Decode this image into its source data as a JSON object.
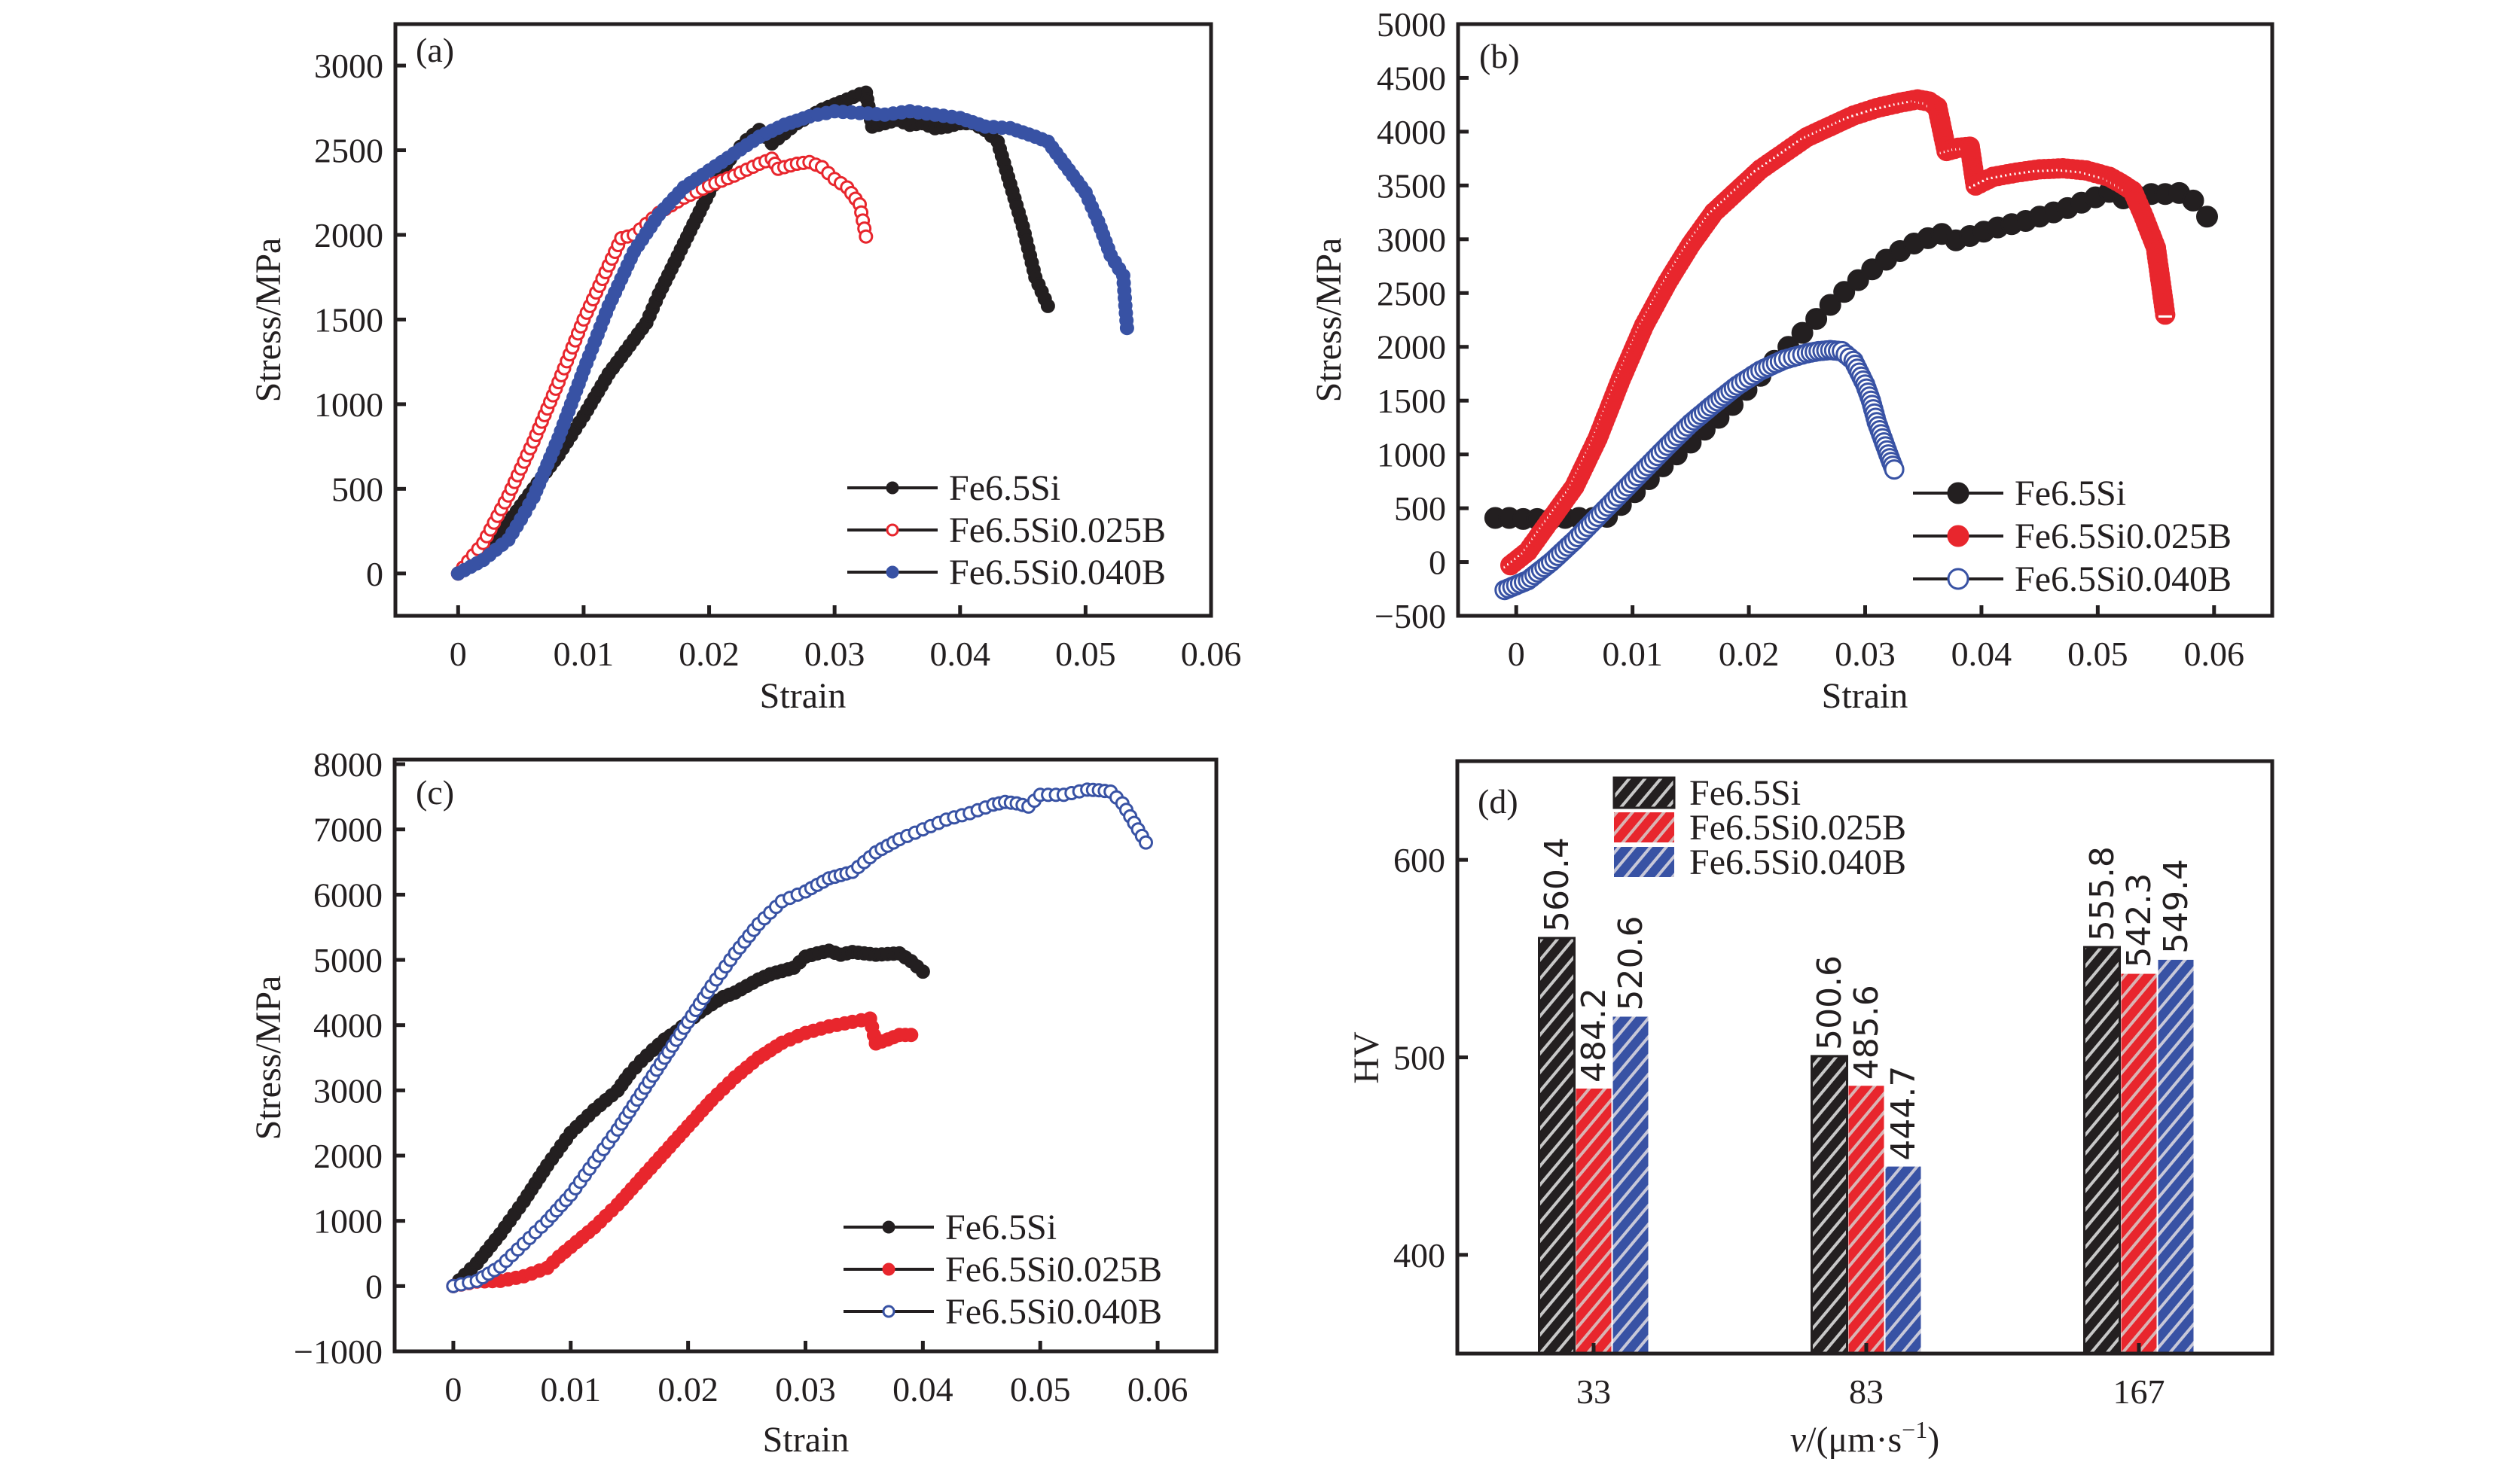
{
  "figure": {
    "series_colors": {
      "Fe6.5Si": "#231f20",
      "Fe6.5Si0.025B": "#e8262d",
      "Fe6.5Si0.040B": "#3852a4"
    }
  },
  "chart_data": [
    {
      "id": "a",
      "panel_label": "(a)",
      "type": "line",
      "xlabel": "Strain",
      "ylabel": "Stress/MPa",
      "xlim": [
        -0.005,
        0.06
      ],
      "ylim": [
        -250,
        3245
      ],
      "xticks": [
        0,
        0.01,
        0.02,
        0.03,
        0.04,
        0.05,
        0.06
      ],
      "xtick_labels": [
        "0",
        "0.01",
        "0.02",
        "0.03",
        "0.04",
        "0.05",
        "0.06"
      ],
      "yticks": [
        0,
        500,
        1000,
        1500,
        2000,
        2500,
        3000
      ],
      "ytick_labels": [
        "0",
        "500",
        "1000",
        "1500",
        "2000",
        "2500",
        "3000"
      ],
      "grid": false,
      "legend_position": "bottom-right",
      "series": [
        {
          "name": "Fe6.5Si",
          "marker": "filled-dot",
          "color": "#231f20",
          "x": [
            0,
            0.002,
            0.004,
            0.006,
            0.008,
            0.01,
            0.012,
            0.014,
            0.015,
            0.016,
            0.017,
            0.018,
            0.019,
            0.02,
            0.021,
            0.022,
            0.023,
            0.024,
            0.025,
            0.026,
            0.027,
            0.028,
            0.029,
            0.03,
            0.031,
            0.032,
            0.0325,
            0.033,
            0.034,
            0.035,
            0.036,
            0.037,
            0.038,
            0.039,
            0.04,
            0.041,
            0.042,
            0.043,
            0.044,
            0.045,
            0.046,
            0.047
          ],
          "y": [
            0,
            120,
            300,
            500,
            700,
            930,
            1180,
            1380,
            1480,
            1650,
            1800,
            1950,
            2100,
            2250,
            2380,
            2480,
            2560,
            2620,
            2540,
            2600,
            2660,
            2700,
            2740,
            2770,
            2800,
            2830,
            2840,
            2640,
            2660,
            2680,
            2650,
            2660,
            2630,
            2640,
            2660,
            2660,
            2620,
            2550,
            2300,
            2050,
            1750,
            1580
          ]
        },
        {
          "name": "Fe6.5Si0.025B",
          "marker": "open-circle",
          "color": "#e8262d",
          "x": [
            0,
            0.002,
            0.004,
            0.006,
            0.008,
            0.01,
            0.012,
            0.013,
            0.014,
            0.016,
            0.018,
            0.02,
            0.022,
            0.024,
            0.025,
            0.0255,
            0.026,
            0.027,
            0.028,
            0.029,
            0.03,
            0.031,
            0.032,
            0.0325
          ],
          "y": [
            0,
            180,
            460,
            780,
            1130,
            1500,
            1820,
            1980,
            2000,
            2130,
            2220,
            2290,
            2350,
            2420,
            2450,
            2390,
            2400,
            2420,
            2430,
            2400,
            2330,
            2280,
            2180,
            1990
          ]
        },
        {
          "name": "Fe6.5Si0.040B",
          "marker": "filled-dot",
          "color": "#3852a4",
          "x": [
            0,
            0.002,
            0.004,
            0.005,
            0.006,
            0.008,
            0.01,
            0.012,
            0.014,
            0.016,
            0.018,
            0.02,
            0.022,
            0.024,
            0.026,
            0.028,
            0.03,
            0.032,
            0.034,
            0.036,
            0.038,
            0.04,
            0.042,
            0.044,
            0.046,
            0.047,
            0.048,
            0.049,
            0.05,
            0.051,
            0.052,
            0.053,
            0.0533
          ],
          "y": [
            0,
            80,
            200,
            320,
            450,
            800,
            1200,
            1580,
            1900,
            2120,
            2280,
            2380,
            2480,
            2580,
            2650,
            2700,
            2730,
            2720,
            2710,
            2730,
            2710,
            2690,
            2640,
            2630,
            2580,
            2550,
            2450,
            2350,
            2250,
            2080,
            1880,
            1760,
            1450
          ]
        }
      ]
    },
    {
      "id": "b",
      "panel_label": "(b)",
      "type": "scatter",
      "xlabel": "Strain",
      "ylabel": "Stress/MPa",
      "xlim": [
        -0.005,
        0.065
      ],
      "ylim": [
        -500,
        5000
      ],
      "xticks": [
        0,
        0.01,
        0.02,
        0.03,
        0.04,
        0.05,
        0.06
      ],
      "xtick_labels": [
        "0",
        "0.01",
        "0.02",
        "0.03",
        "0.04",
        "0.05",
        "0.06"
      ],
      "yticks": [
        -500,
        0,
        500,
        1000,
        1500,
        2000,
        2500,
        3000,
        3500,
        4000,
        4500,
        5000
      ],
      "ytick_labels": [
        "−500",
        "0",
        "500",
        "1000",
        "1500",
        "2000",
        "2500",
        "3000",
        "3500",
        "4000",
        "4500",
        "5000"
      ],
      "grid": false,
      "legend_position": "bottom-right",
      "series": [
        {
          "name": "Fe6.5Si",
          "marker": "large-filled-dot",
          "color": "#231f20",
          "x": [
            -0.0018,
            -0.0006,
            0.0006,
            0.0018,
            0.003,
            0.0042,
            0.0054,
            0.0066,
            0.0078,
            0.009,
            0.0102,
            0.0114,
            0.0126,
            0.0138,
            0.015,
            0.0162,
            0.0174,
            0.0186,
            0.0198,
            0.021,
            0.0222,
            0.0234,
            0.0246,
            0.0258,
            0.027,
            0.0282,
            0.0294,
            0.0306,
            0.0318,
            0.033,
            0.0342,
            0.0354,
            0.0366,
            0.0378,
            0.039,
            0.0402,
            0.0414,
            0.0426,
            0.0438,
            0.045,
            0.0462,
            0.0474,
            0.0486,
            0.0498,
            0.051,
            0.0522,
            0.0534,
            0.0546,
            0.0558,
            0.057,
            0.0582,
            0.0594
          ],
          "y": [
            410,
            410,
            400,
            400,
            400,
            410,
            410,
            410,
            420,
            530,
            650,
            770,
            890,
            1000,
            1110,
            1230,
            1340,
            1460,
            1600,
            1730,
            1870,
            2000,
            2130,
            2260,
            2390,
            2510,
            2620,
            2720,
            2810,
            2890,
            2960,
            3010,
            3050,
            2990,
            3030,
            3070,
            3110,
            3140,
            3170,
            3210,
            3250,
            3290,
            3340,
            3390,
            3440,
            3380,
            3400,
            3420,
            3420,
            3430,
            3360,
            3210
          ]
        },
        {
          "name": "Fe6.5Si0.025B",
          "marker": "half-filled-circle",
          "color": "#e8262d",
          "x": [
            -0.0005,
            0.001,
            0.003,
            0.005,
            0.007,
            0.009,
            0.011,
            0.013,
            0.015,
            0.017,
            0.019,
            0.021,
            0.023,
            0.025,
            0.027,
            0.029,
            0.031,
            0.033,
            0.0345,
            0.0355,
            0.0362,
            0.037,
            0.038,
            0.039,
            0.0395,
            0.041,
            0.043,
            0.045,
            0.047,
            0.049,
            0.051,
            0.052,
            0.053,
            0.054,
            0.055,
            0.0558
          ],
          "y": [
            -30,
            100,
            400,
            700,
            1150,
            1700,
            2200,
            2600,
            2950,
            3250,
            3450,
            3650,
            3800,
            3950,
            4050,
            4150,
            4220,
            4270,
            4300,
            4280,
            4230,
            3820,
            3850,
            3860,
            3500,
            3580,
            3620,
            3650,
            3660,
            3640,
            3580,
            3520,
            3450,
            3200,
            2920,
            2300
          ]
        },
        {
          "name": "Fe6.5Si0.040B",
          "marker": "open-circle",
          "color": "#3852a4",
          "x": [
            -0.001,
            0.001,
            0.003,
            0.005,
            0.007,
            0.009,
            0.011,
            0.013,
            0.015,
            0.017,
            0.019,
            0.021,
            0.023,
            0.025,
            0.026,
            0.027,
            0.028,
            0.029,
            0.03,
            0.0305,
            0.031,
            0.0315,
            0.032,
            0.0325
          ],
          "y": [
            -260,
            -170,
            0,
            200,
            420,
            640,
            860,
            1080,
            1290,
            1470,
            1640,
            1780,
            1880,
            1940,
            1960,
            1970,
            1960,
            1870,
            1650,
            1500,
            1300,
            1150,
            1000,
            860
          ]
        }
      ]
    },
    {
      "id": "c",
      "panel_label": "(c)",
      "type": "line",
      "xlabel": "Strain",
      "ylabel": "Stress/MPa",
      "xlim": [
        -0.005,
        0.065
      ],
      "ylim": [
        -1000,
        8070
      ],
      "xticks": [
        0,
        0.01,
        0.02,
        0.03,
        0.04,
        0.05,
        0.06
      ],
      "xtick_labels": [
        "0",
        "0.01",
        "0.02",
        "0.03",
        "0.04",
        "0.05",
        "0.06"
      ],
      "yticks": [
        -1000,
        0,
        1000,
        2000,
        3000,
        4000,
        5000,
        6000,
        7000,
        8000
      ],
      "ytick_labels": [
        "−1000",
        "0",
        "1000",
        "2000",
        "3000",
        "4000",
        "5000",
        "6000",
        "7000",
        "8000"
      ],
      "grid": false,
      "legend_position": "bottom-right",
      "series": [
        {
          "name": "Fe6.5Si",
          "marker": "filled-dot",
          "color": "#231f20",
          "x": [
            0,
            0.002,
            0.004,
            0.006,
            0.008,
            0.01,
            0.012,
            0.014,
            0.015,
            0.016,
            0.017,
            0.018,
            0.019,
            0.02,
            0.021,
            0.022,
            0.023,
            0.024,
            0.025,
            0.026,
            0.027,
            0.028,
            0.029,
            0.03,
            0.031,
            0.032,
            0.033,
            0.034,
            0.035,
            0.036,
            0.037,
            0.038,
            0.039,
            0.04
          ],
          "y": [
            0,
            350,
            800,
            1300,
            1850,
            2350,
            2700,
            3000,
            3250,
            3450,
            3620,
            3780,
            3900,
            4050,
            4200,
            4320,
            4430,
            4500,
            4600,
            4700,
            4780,
            4830,
            4880,
            5050,
            5100,
            5140,
            5080,
            5120,
            5100,
            5080,
            5090,
            5100,
            4980,
            4820
          ]
        },
        {
          "name": "Fe6.5Si0.025B",
          "marker": "filled-dot",
          "color": "#e8262d",
          "x": [
            0,
            0.002,
            0.004,
            0.006,
            0.008,
            0.009,
            0.01,
            0.012,
            0.014,
            0.016,
            0.018,
            0.02,
            0.022,
            0.024,
            0.026,
            0.028,
            0.03,
            0.032,
            0.034,
            0.0355,
            0.036,
            0.037,
            0.038,
            0.039
          ],
          "y": [
            0,
            70,
            80,
            150,
            280,
            450,
            600,
            900,
            1250,
            1650,
            2050,
            2450,
            2850,
            3200,
            3500,
            3730,
            3880,
            3980,
            4050,
            4100,
            3720,
            3780,
            3850,
            3850
          ]
        },
        {
          "name": "Fe6.5Si0.040B",
          "marker": "open-circle",
          "color": "#3852a4",
          "x": [
            0,
            0.002,
            0.004,
            0.006,
            0.008,
            0.01,
            0.012,
            0.014,
            0.016,
            0.018,
            0.02,
            0.022,
            0.024,
            0.026,
            0.028,
            0.03,
            0.032,
            0.033,
            0.034,
            0.036,
            0.038,
            0.04,
            0.042,
            0.044,
            0.046,
            0.047,
            0.048,
            0.049,
            0.05,
            0.052,
            0.054,
            0.055,
            0.056,
            0.057,
            0.058,
            0.059
          ],
          "y": [
            0,
            80,
            300,
            650,
            1000,
            1400,
            1900,
            2400,
            2950,
            3500,
            4050,
            4600,
            5100,
            5550,
            5900,
            6050,
            6250,
            6300,
            6350,
            6650,
            6850,
            7000,
            7150,
            7250,
            7380,
            7420,
            7400,
            7350,
            7530,
            7530,
            7610,
            7600,
            7580,
            7400,
            7100,
            6800
          ]
        }
      ]
    },
    {
      "id": "d",
      "panel_label": "(d)",
      "type": "bar",
      "xlabel": "v/(μm·s⁻¹)",
      "xlabel_italic_part": "v",
      "xlabel_rest": "/(μm·s",
      "xlabel_sup": "−1",
      "xlabel_close": ")",
      "ylabel": "HV",
      "ylim": [
        350,
        650
      ],
      "yticks": [
        400,
        500,
        600
      ],
      "ytick_labels": [
        "400",
        "500",
        "600"
      ],
      "categories": [
        "33",
        "83",
        "167"
      ],
      "grid": false,
      "legend_position": "top-left",
      "bar_style": "hatched",
      "series": [
        {
          "name": "Fe6.5Si",
          "color": "#231f20",
          "values": [
            560.4,
            500.6,
            555.8
          ],
          "value_labels": [
            "560.4",
            "500.6",
            "555.8"
          ]
        },
        {
          "name": "Fe6.5Si0.025B",
          "color": "#e8262d",
          "values": [
            484.2,
            485.6,
            542.3
          ],
          "value_labels": [
            "484.2",
            "485.6",
            "542.3"
          ]
        },
        {
          "name": "Fe6.5Si0.040B",
          "color": "#3852a4",
          "values": [
            520.6,
            444.7,
            549.4
          ],
          "value_labels": [
            "520.6",
            "444.7",
            "549.4"
          ]
        }
      ]
    }
  ]
}
